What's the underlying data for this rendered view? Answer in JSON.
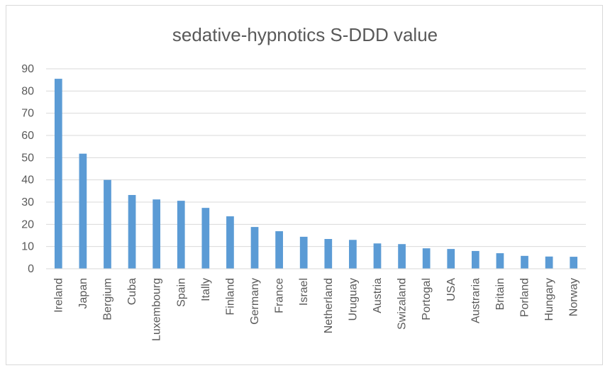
{
  "chart_data": {
    "type": "bar",
    "title": "sedative-hypnotics S-DDD value",
    "xlabel": "",
    "ylabel": "",
    "ylim": [
      0,
      90
    ],
    "yticks": [
      0,
      10,
      20,
      30,
      40,
      50,
      60,
      70,
      80,
      90
    ],
    "grid": true,
    "legend": "none",
    "bar_color": "#5b9bd5",
    "categories": [
      "Ireland",
      "Japan",
      "Bergium",
      "Cuba",
      "Luxembourg",
      "Spain",
      "Itally",
      "Finland",
      "Germany",
      "France",
      "Israel",
      "Netherland",
      "Uruguay",
      "Austria",
      "Swizaland",
      "Portogal",
      "USA",
      "Austraria",
      "Britain",
      "Porland",
      "Hungary",
      "Norway"
    ],
    "values": [
      85.5,
      51.8,
      40.0,
      33.2,
      31.2,
      30.6,
      27.4,
      23.6,
      18.8,
      16.9,
      14.4,
      13.4,
      13.0,
      11.4,
      11.1,
      9.2,
      8.9,
      8.0,
      7.0,
      5.8,
      5.5,
      5.4
    ]
  }
}
